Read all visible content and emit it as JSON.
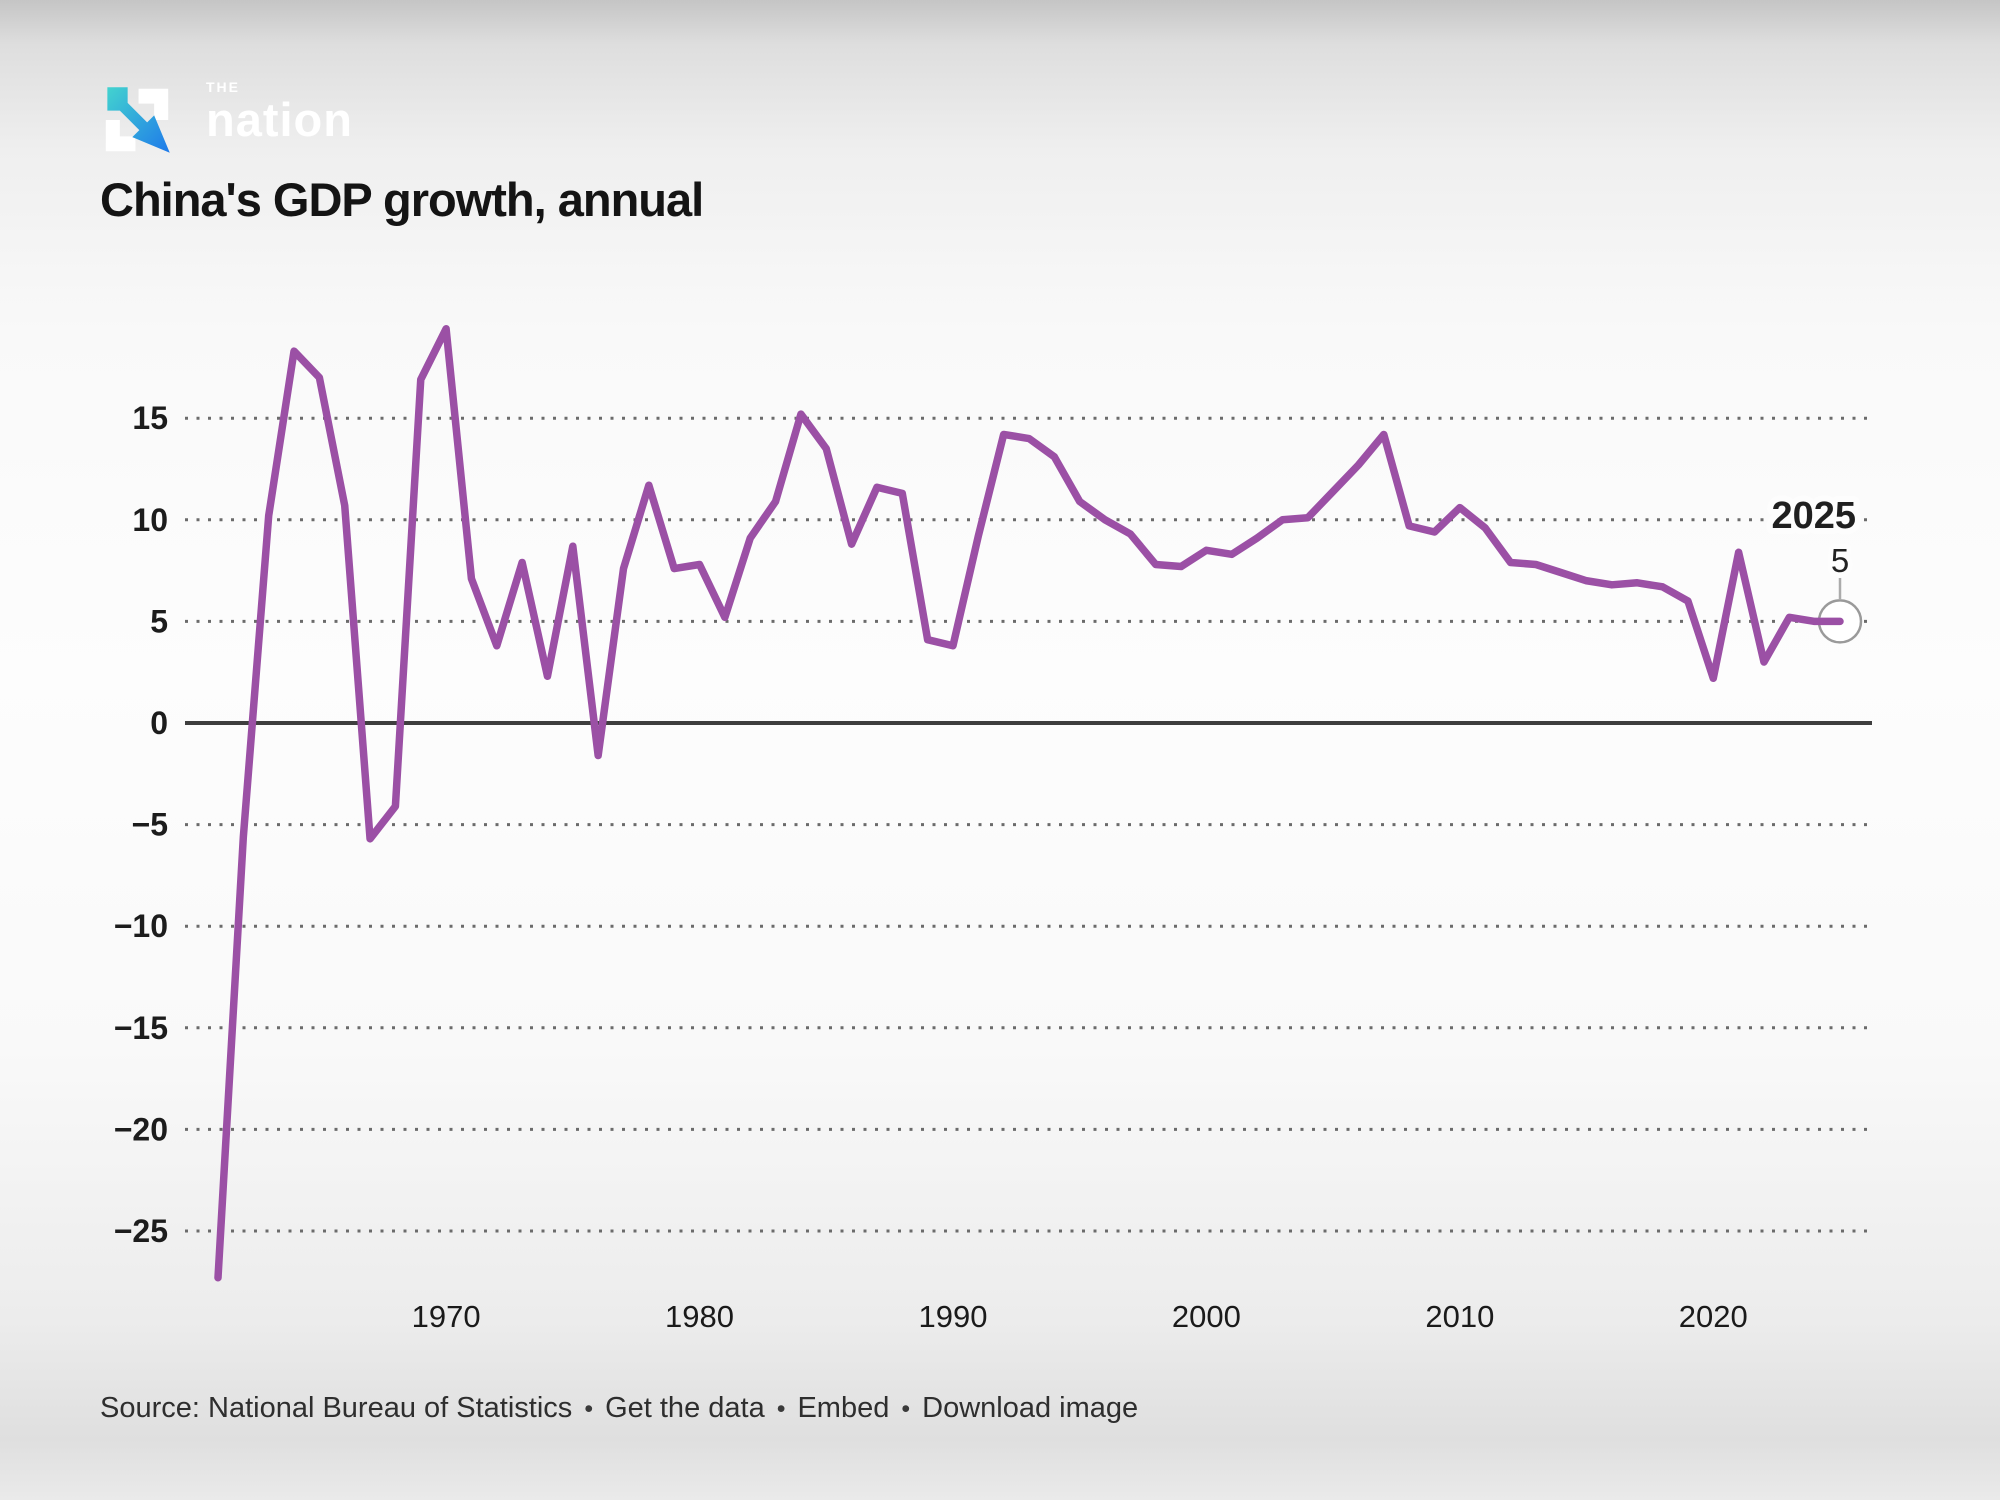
{
  "brand": {
    "the": "THE",
    "name": "nation",
    "icon": "nation-n-arrow-icon",
    "icon_teal": "#43d3cf",
    "icon_blue": "#1e79ea"
  },
  "title": "China's GDP growth, annual",
  "footer": {
    "source": "Source: National Bureau of Statistics",
    "separator": "•",
    "links": [
      "Get the data",
      "Embed",
      "Download image"
    ]
  },
  "chart_data": {
    "type": "line",
    "title": "China's GDP growth, annual",
    "series_name": "China annual GDP growth (%)",
    "line_color": "#9b50a5",
    "x": [
      1961,
      1962,
      1963,
      1964,
      1965,
      1966,
      1967,
      1968,
      1969,
      1970,
      1971,
      1972,
      1973,
      1974,
      1975,
      1976,
      1977,
      1978,
      1979,
      1980,
      1981,
      1982,
      1983,
      1984,
      1985,
      1986,
      1987,
      1988,
      1989,
      1990,
      1991,
      1992,
      1993,
      1994,
      1995,
      1996,
      1997,
      1998,
      1999,
      2000,
      2001,
      2002,
      2003,
      2004,
      2005,
      2006,
      2007,
      2008,
      2009,
      2010,
      2011,
      2012,
      2013,
      2014,
      2015,
      2016,
      2017,
      2018,
      2019,
      2020,
      2021,
      2022,
      2023,
      2024,
      2025
    ],
    "y": [
      -27.3,
      -5.6,
      10.2,
      18.3,
      17.0,
      10.7,
      -5.7,
      -4.1,
      16.9,
      19.4,
      7.1,
      3.8,
      7.9,
      2.3,
      8.7,
      -1.6,
      7.6,
      11.7,
      7.6,
      7.8,
      5.2,
      9.1,
      10.9,
      15.2,
      13.5,
      8.8,
      11.6,
      11.3,
      4.1,
      3.8,
      9.2,
      14.2,
      14.0,
      13.1,
      10.9,
      10.0,
      9.3,
      7.8,
      7.7,
      8.5,
      8.3,
      9.1,
      10.0,
      10.1,
      11.4,
      12.7,
      14.2,
      9.7,
      9.4,
      10.6,
      9.6,
      7.9,
      7.8,
      7.4,
      7.0,
      6.8,
      6.9,
      6.7,
      6.0,
      2.2,
      8.4,
      3.0,
      5.2,
      5.0,
      5.0
    ],
    "xlim": [
      1961,
      2025
    ],
    "ylim": [
      -28.5,
      20.5
    ],
    "x_ticks": [
      1970,
      1980,
      1990,
      2000,
      2010,
      2020
    ],
    "y_ticks": [
      15,
      10,
      5,
      0,
      -5,
      -10,
      -15,
      -20,
      -25
    ],
    "grid": "horizontal dotted gridlines, solid line at zero, legend none",
    "annotation": {
      "year": "2025",
      "value": "5",
      "value_numeric": 5
    }
  }
}
